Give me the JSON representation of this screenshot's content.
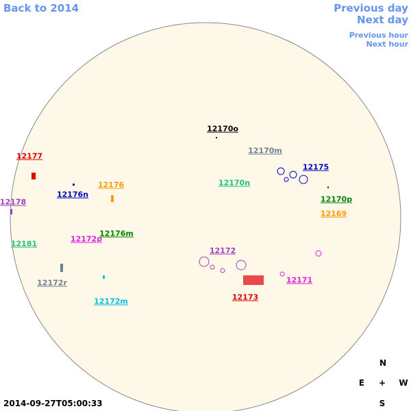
{
  "header": {
    "back": "Back to 2014",
    "previous_day": "Previous day",
    "next_day": "Next day",
    "previous_hour": "Previous hour",
    "next_hour": "Next hour"
  },
  "regions": [
    {
      "label": "12177",
      "color": "#e00000"
    },
    {
      "label": "12178",
      "color": "#a040c0"
    },
    {
      "label": "12176n",
      "color": "#0000c0"
    },
    {
      "label": "12176",
      "color": "#ff9900"
    },
    {
      "label": "12181",
      "color": "#20c080"
    },
    {
      "label": "12172p",
      "color": "#e020e0"
    },
    {
      "label": "12176m",
      "color": "#008000"
    },
    {
      "label": "12172r",
      "color": "#708090"
    },
    {
      "label": "12172m",
      "color": "#00bfe0"
    },
    {
      "label": "12170o",
      "color": "#000000"
    },
    {
      "label": "12170m",
      "color": "#708090"
    },
    {
      "label": "12170n",
      "color": "#20c080"
    },
    {
      "label": "12175",
      "color": "#0000c0"
    },
    {
      "label": "12170p",
      "color": "#008000"
    },
    {
      "label": "12169",
      "color": "#ff9900"
    },
    {
      "label": "12172",
      "color": "#a040c0"
    },
    {
      "label": "12171",
      "color": "#e020e0"
    },
    {
      "label": "12173",
      "color": "#e00000"
    }
  ],
  "timestamp": "2014-09-27T05:00:33",
  "compass": {
    "north": "N",
    "east": "E",
    "center": "+",
    "west": "W",
    "south": "S"
  }
}
